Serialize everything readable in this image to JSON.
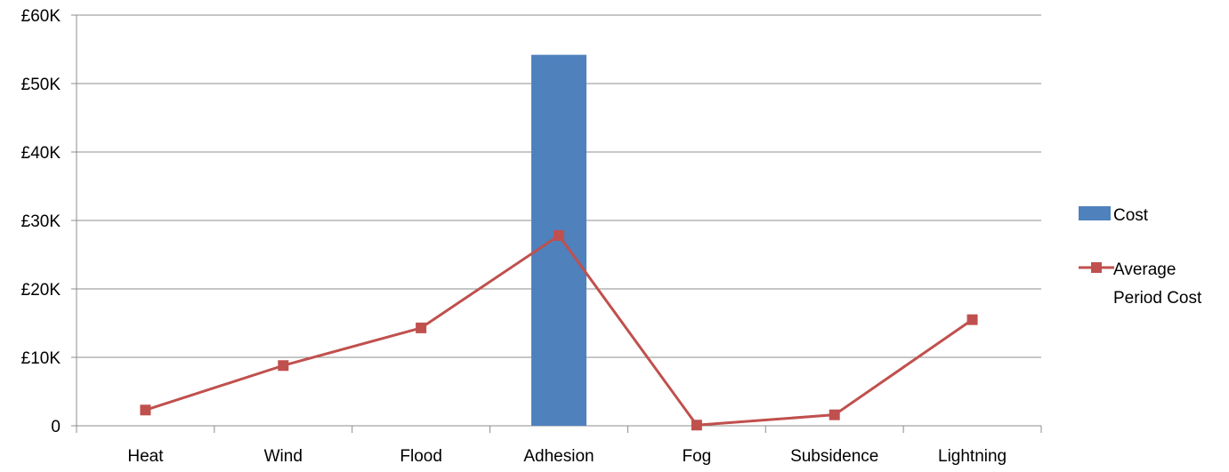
{
  "chart_data": {
    "type": "bar",
    "categories": [
      "Heat",
      "Wind",
      "Flood",
      "Adhesion",
      "Fog",
      "Subsidence",
      "Lightning"
    ],
    "series": [
      {
        "name": "Cost",
        "type": "bar",
        "color": "#4F81BD",
        "values": [
          0,
          0,
          0,
          54200,
          0,
          0,
          0
        ]
      },
      {
        "name": "Average Period Cost",
        "type": "line",
        "color": "#C0504D",
        "marker": "square",
        "values": [
          2300,
          8800,
          14300,
          27800,
          100,
          1600,
          15500
        ]
      }
    ],
    "ylim": [
      0,
      60000
    ],
    "yticks": [
      {
        "value": 0,
        "label": "0"
      },
      {
        "value": 10000,
        "label": "£10K"
      },
      {
        "value": 20000,
        "label": "£20K"
      },
      {
        "value": 30000,
        "label": "£30K"
      },
      {
        "value": 40000,
        "label": "£40K"
      },
      {
        "value": 50000,
        "label": "£50K"
      },
      {
        "value": 60000,
        "label": "£60K"
      }
    ],
    "grid": true,
    "legend_position": "right",
    "legend": [
      {
        "series": "Cost",
        "lines": [
          "Cost"
        ]
      },
      {
        "series": "Average Period Cost",
        "lines": [
          "Average",
          "Period Cost"
        ]
      }
    ]
  }
}
